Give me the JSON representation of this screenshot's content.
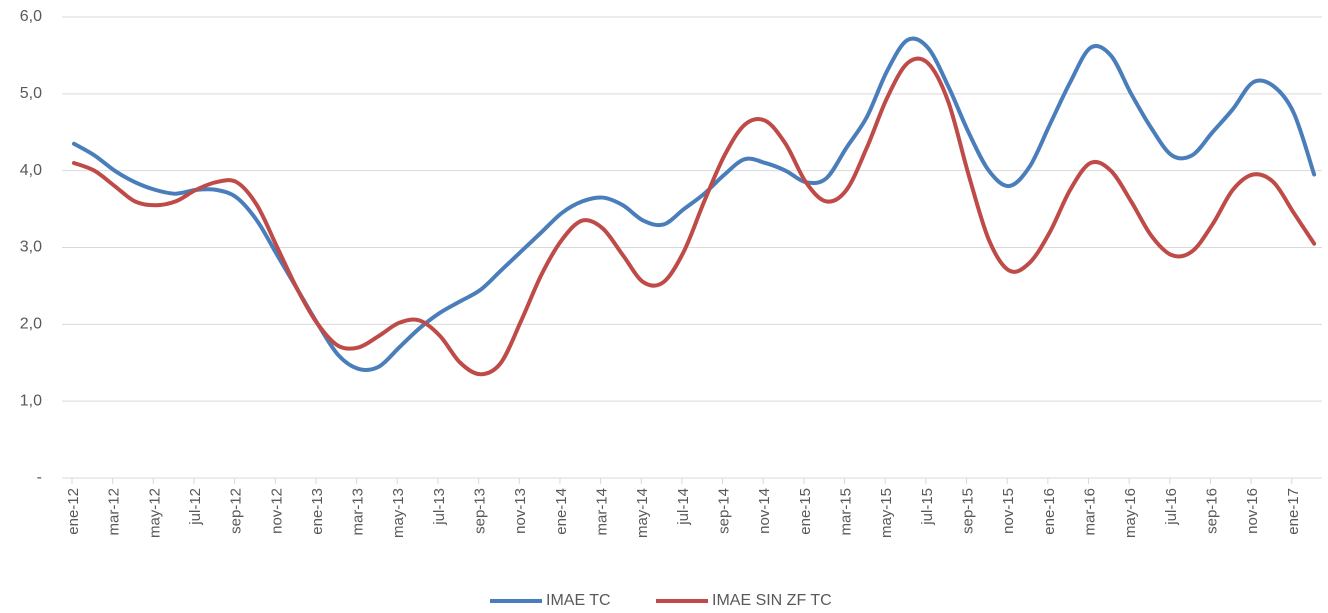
{
  "chart_data": {
    "type": "line",
    "categories": [
      "ene-12",
      null,
      "mar-12",
      null,
      "may-12",
      null,
      "jul-12",
      null,
      "sep-12",
      null,
      "nov-12",
      null,
      "ene-13",
      null,
      "mar-13",
      null,
      "may-13",
      null,
      "jul-13",
      null,
      "sep-13",
      null,
      "nov-13",
      null,
      "ene-14",
      null,
      "mar-14",
      null,
      "may-14",
      null,
      "jul-14",
      null,
      "sep-14",
      null,
      "nov-14",
      null,
      "ene-15",
      null,
      "mar-15",
      null,
      "may-15",
      null,
      "jul-15",
      null,
      "sep-15",
      null,
      "nov-15",
      null,
      "ene-16",
      null,
      "mar-16",
      null,
      "may-16",
      null,
      "jul-16",
      null,
      "sep-16",
      null,
      "nov-16",
      null,
      "ene-17",
      null
    ],
    "series": [
      {
        "name": "IMAE TC",
        "color": "#4a7ebb",
        "values": [
          4.35,
          4.2,
          4.0,
          3.85,
          3.75,
          3.7,
          3.75,
          3.75,
          3.65,
          3.35,
          2.9,
          2.45,
          2.0,
          1.6,
          1.42,
          1.45,
          1.7,
          1.95,
          2.15,
          2.3,
          2.45,
          2.7,
          2.95,
          3.2,
          3.45,
          3.6,
          3.65,
          3.55,
          3.35,
          3.3,
          3.5,
          3.7,
          3.95,
          4.15,
          4.1,
          4.0,
          3.85,
          3.9,
          4.3,
          4.7,
          5.3,
          5.7,
          5.6,
          5.1,
          4.5,
          4.0,
          3.8,
          4.05,
          4.6,
          5.15,
          5.6,
          5.5,
          5.0,
          4.55,
          4.2,
          4.2,
          4.5,
          4.8,
          5.15,
          5.1,
          4.75,
          3.95
        ]
      },
      {
        "name": "IMAE SIN ZF TC",
        "color": "#be4b48",
        "values": [
          4.1,
          4.0,
          3.8,
          3.6,
          3.55,
          3.6,
          3.75,
          3.85,
          3.85,
          3.55,
          3.0,
          2.45,
          2.0,
          1.72,
          1.7,
          1.85,
          2.02,
          2.05,
          1.85,
          1.5,
          1.35,
          1.5,
          2.05,
          2.65,
          3.1,
          3.35,
          3.25,
          2.9,
          2.55,
          2.55,
          2.95,
          3.6,
          4.2,
          4.6,
          4.65,
          4.35,
          3.85,
          3.6,
          3.75,
          4.3,
          4.95,
          5.4,
          5.4,
          4.9,
          3.95,
          3.1,
          2.7,
          2.8,
          3.2,
          3.75,
          4.1,
          4.0,
          3.6,
          3.15,
          2.9,
          2.95,
          3.3,
          3.75,
          3.95,
          3.85,
          3.45,
          3.05
        ]
      }
    ],
    "ylim": [
      0,
      6
    ],
    "yticks": [
      {
        "value": 0,
        "label": "-"
      },
      {
        "value": 1,
        "label": "1,0"
      },
      {
        "value": 2,
        "label": "2,0"
      },
      {
        "value": 3,
        "label": "3,0"
      },
      {
        "value": 4,
        "label": "4,0"
      },
      {
        "value": 5,
        "label": "5,0"
      },
      {
        "value": 6,
        "label": "6,0"
      }
    ],
    "grid": true,
    "legend": "bottom"
  }
}
